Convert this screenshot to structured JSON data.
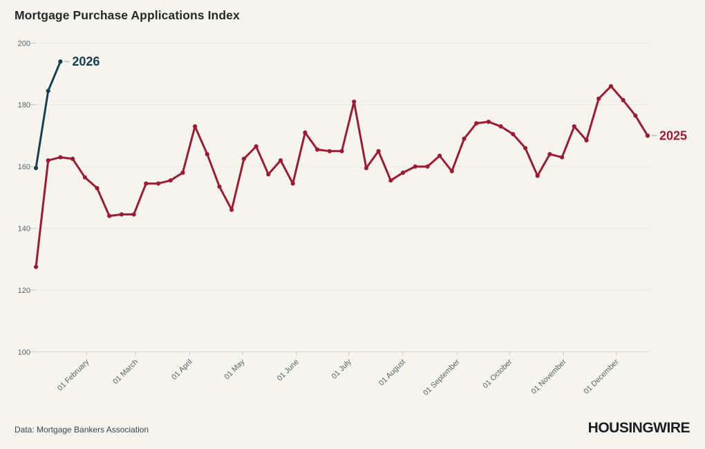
{
  "header": {
    "title": "Mortgage Purchase Applications Index"
  },
  "footer": {
    "source": "Data: Mortgage Bankers Association",
    "brand": "HOUSINGWIRE"
  },
  "colors": {
    "background": "#f5f4ef",
    "series_2025": "#9c1b30",
    "series_2026": "#163f50",
    "grid": "#e9e7e0",
    "axis": "#d8d6cf",
    "tick": "#c6c4bd",
    "leader": "#b9b7b0",
    "axis_text": "#5d5f62",
    "title_text": "#26282b"
  },
  "chart_data": {
    "type": "line",
    "title": "Mortgage Purchase Applications Index",
    "xlabel": "",
    "ylabel": "",
    "ylim": [
      100,
      200
    ],
    "yticks": [
      100,
      120,
      140,
      160,
      180,
      200
    ],
    "grid": "horizontal-only",
    "legend_position": "inline-end-of-line-labels",
    "x_unit": "weekly observations",
    "months": [
      {
        "label": "01 February",
        "week": 4.143
      },
      {
        "label": "01 March",
        "week": 8.143
      },
      {
        "label": "01 April",
        "week": 12.571
      },
      {
        "label": "01 May",
        "week": 16.857
      },
      {
        "label": "01 June",
        "week": 21.286
      },
      {
        "label": "01 July",
        "week": 25.571
      },
      {
        "label": "01 August",
        "week": 30.0
      },
      {
        "label": "01 September",
        "week": 34.429
      },
      {
        "label": "01 October",
        "week": 38.714
      },
      {
        "label": "01 November",
        "week": 43.143
      },
      {
        "label": "01 December",
        "week": 47.429
      }
    ],
    "series": [
      {
        "name": "2025",
        "color": "#9c1b30",
        "start_week": 0,
        "values": [
          127.5,
          162,
          163,
          162.5,
          156.5,
          153,
          144,
          144.5,
          144.5,
          154.5,
          154.5,
          155.5,
          158,
          173,
          164,
          153.5,
          146,
          162.5,
          166.5,
          157.5,
          162,
          154.5,
          171,
          165.5,
          165,
          165,
          181,
          159.5,
          165,
          155.5,
          158,
          160,
          160,
          163.5,
          158.5,
          169,
          174,
          174.5,
          173,
          170.5,
          166,
          157,
          164,
          163,
          173,
          168.5,
          182,
          186,
          181.5,
          176.5,
          170
        ]
      },
      {
        "name": "2026",
        "color": "#163f50",
        "start_week": 0,
        "values": [
          159.5,
          184.5,
          194
        ]
      }
    ]
  }
}
